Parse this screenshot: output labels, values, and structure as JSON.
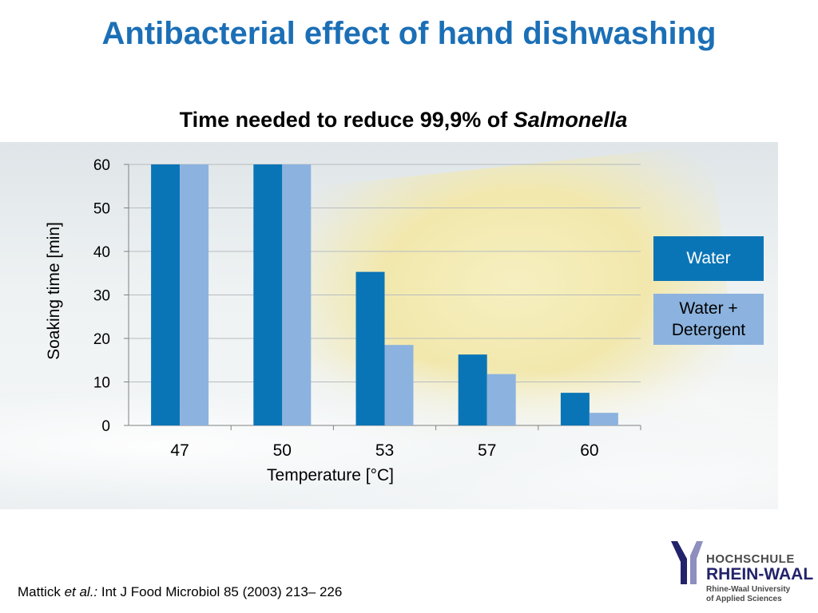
{
  "slide": {
    "title": "Antibacterial effect of hand dishwashing",
    "citation_author": "Mattick ",
    "citation_etal": "et al.:",
    "citation_rest": " Int J Food Microbiol 85 (2003) 213– 226"
  },
  "logo": {
    "line1": "HOCHSCHULE",
    "line2": "RHEIN-WAAL",
    "line3": "Rhine-Waal University",
    "line4": "of Applied Sciences",
    "color_primary": "#23236b",
    "color_secondary": "#8e8fbf"
  },
  "chart_data": {
    "type": "bar",
    "title_prefix": "Time needed to reduce 99,9% of ",
    "title_italic": "Salmonella",
    "xlabel": "Temperature [°C]",
    "ylabel": "Soaking time [min]",
    "categories": [
      "47",
      "50",
      "53",
      "57",
      "60"
    ],
    "yticks": [
      "0",
      "10",
      "20",
      "30",
      "40",
      "50",
      "60"
    ],
    "ylim": [
      0,
      60
    ],
    "grid": true,
    "legend_position": "right",
    "series": [
      {
        "name": "Water",
        "color": "#0a75b6",
        "values": [
          60,
          60,
          35.3,
          16.3,
          7.5
        ]
      },
      {
        "name": "Water + Detergent",
        "name_line1": "Water +",
        "name_line2": "Detergent",
        "color": "#8cb3df",
        "values": [
          60,
          60,
          18.5,
          11.8,
          2.9
        ]
      }
    ]
  }
}
